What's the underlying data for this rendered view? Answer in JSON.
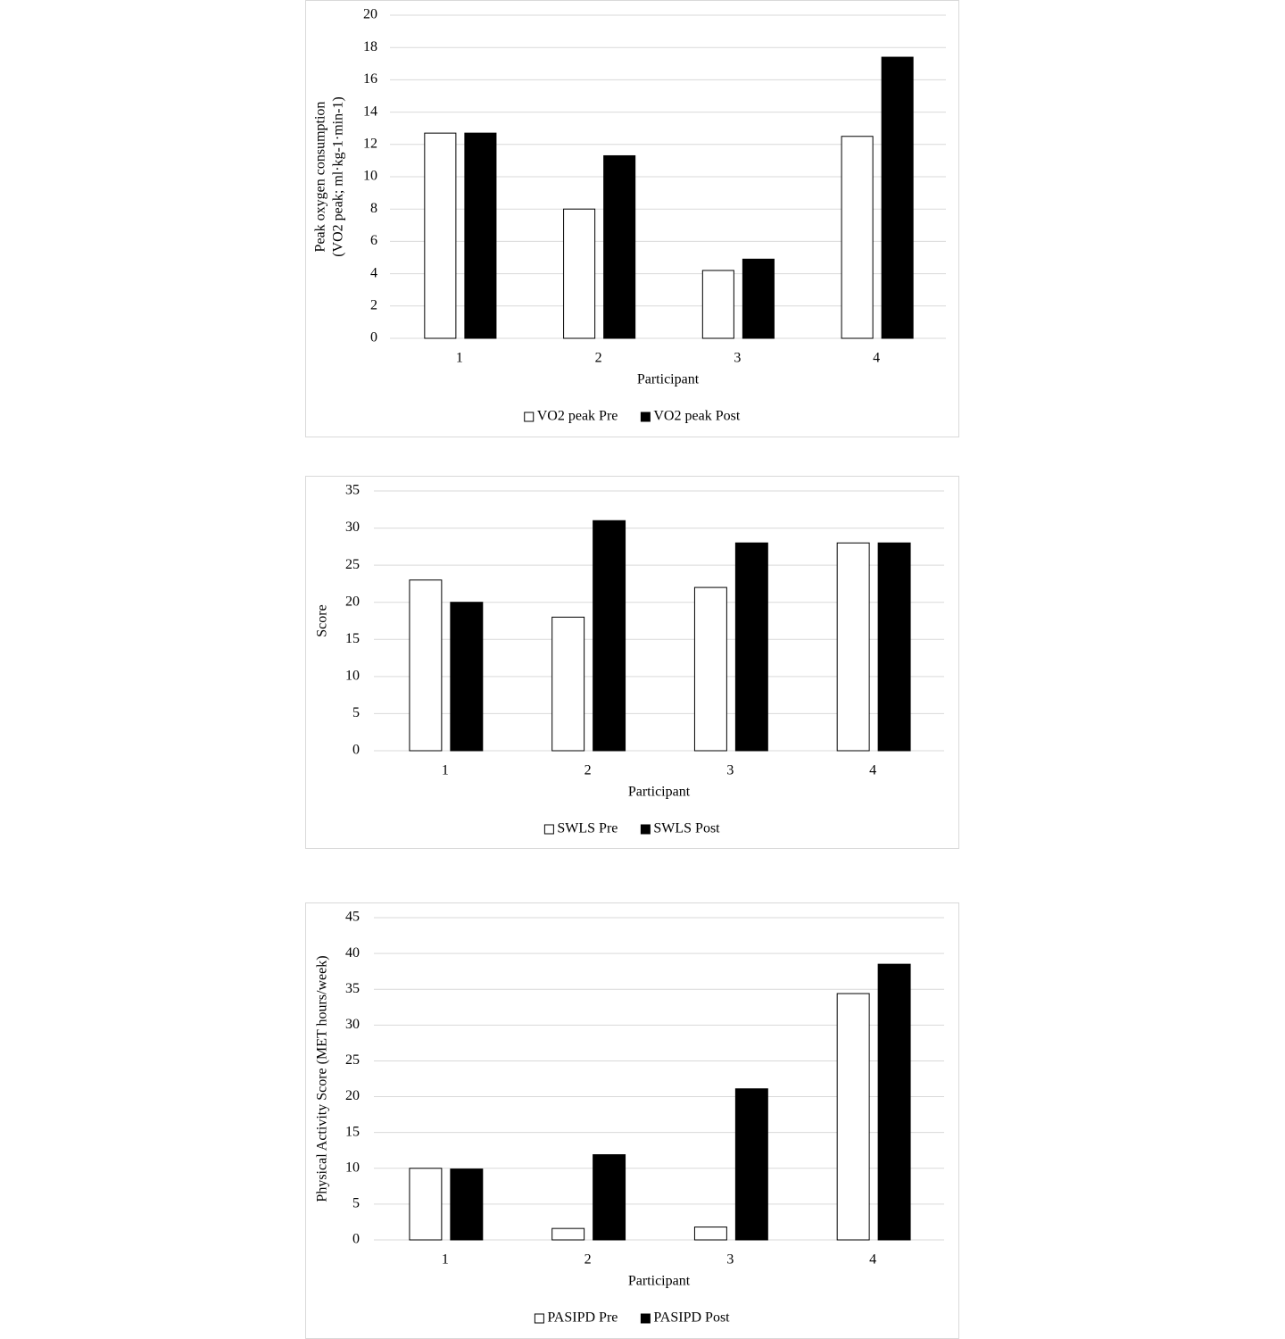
{
  "chart_data": [
    {
      "type": "bar",
      "ylabel": [
        "Peak oxygen consumption",
        "(VO2 peak; ml·kg-1·min-1)"
      ],
      "xlabel": "Participant",
      "categories": [
        "1",
        "2",
        "3",
        "4"
      ],
      "series": [
        {
          "name": "VO2 peak Pre",
          "color": "#ffffff",
          "values": [
            12.7,
            8.0,
            4.2,
            12.5
          ]
        },
        {
          "name": "VO2 peak Post",
          "color": "#000000",
          "values": [
            12.7,
            11.3,
            4.9,
            17.4
          ]
        }
      ],
      "ylim": [
        0,
        20
      ],
      "yticks": [
        0,
        2,
        4,
        6,
        8,
        10,
        12,
        14,
        16,
        18,
        20
      ],
      "grid": true,
      "legend": "bottom"
    },
    {
      "type": "bar",
      "ylabel": [
        "Score"
      ],
      "xlabel": "Participant",
      "categories": [
        "1",
        "2",
        "3",
        "4"
      ],
      "series": [
        {
          "name": "SWLS Pre",
          "color": "#ffffff",
          "values": [
            23,
            18,
            22,
            28
          ]
        },
        {
          "name": "SWLS Post",
          "color": "#000000",
          "values": [
            20,
            31,
            28,
            28
          ]
        }
      ],
      "ylim": [
        0,
        35
      ],
      "yticks": [
        0,
        5,
        10,
        15,
        20,
        25,
        30,
        35
      ],
      "grid": true,
      "legend": "bottom"
    },
    {
      "type": "bar",
      "ylabel": [
        "Physical Activity Score (MET hours/week)"
      ],
      "xlabel": "Participant",
      "categories": [
        "1",
        "2",
        "3",
        "4"
      ],
      "series": [
        {
          "name": "PASIPD Pre",
          "color": "#ffffff",
          "values": [
            10,
            1.6,
            1.8,
            34.4
          ]
        },
        {
          "name": "PASIPD Post",
          "color": "#000000",
          "values": [
            9.9,
            11.9,
            21.1,
            38.5
          ]
        }
      ],
      "ylim": [
        0,
        45
      ],
      "yticks": [
        0,
        5,
        10,
        15,
        20,
        25,
        30,
        35,
        40,
        45
      ],
      "grid": true,
      "legend": "bottom"
    }
  ]
}
